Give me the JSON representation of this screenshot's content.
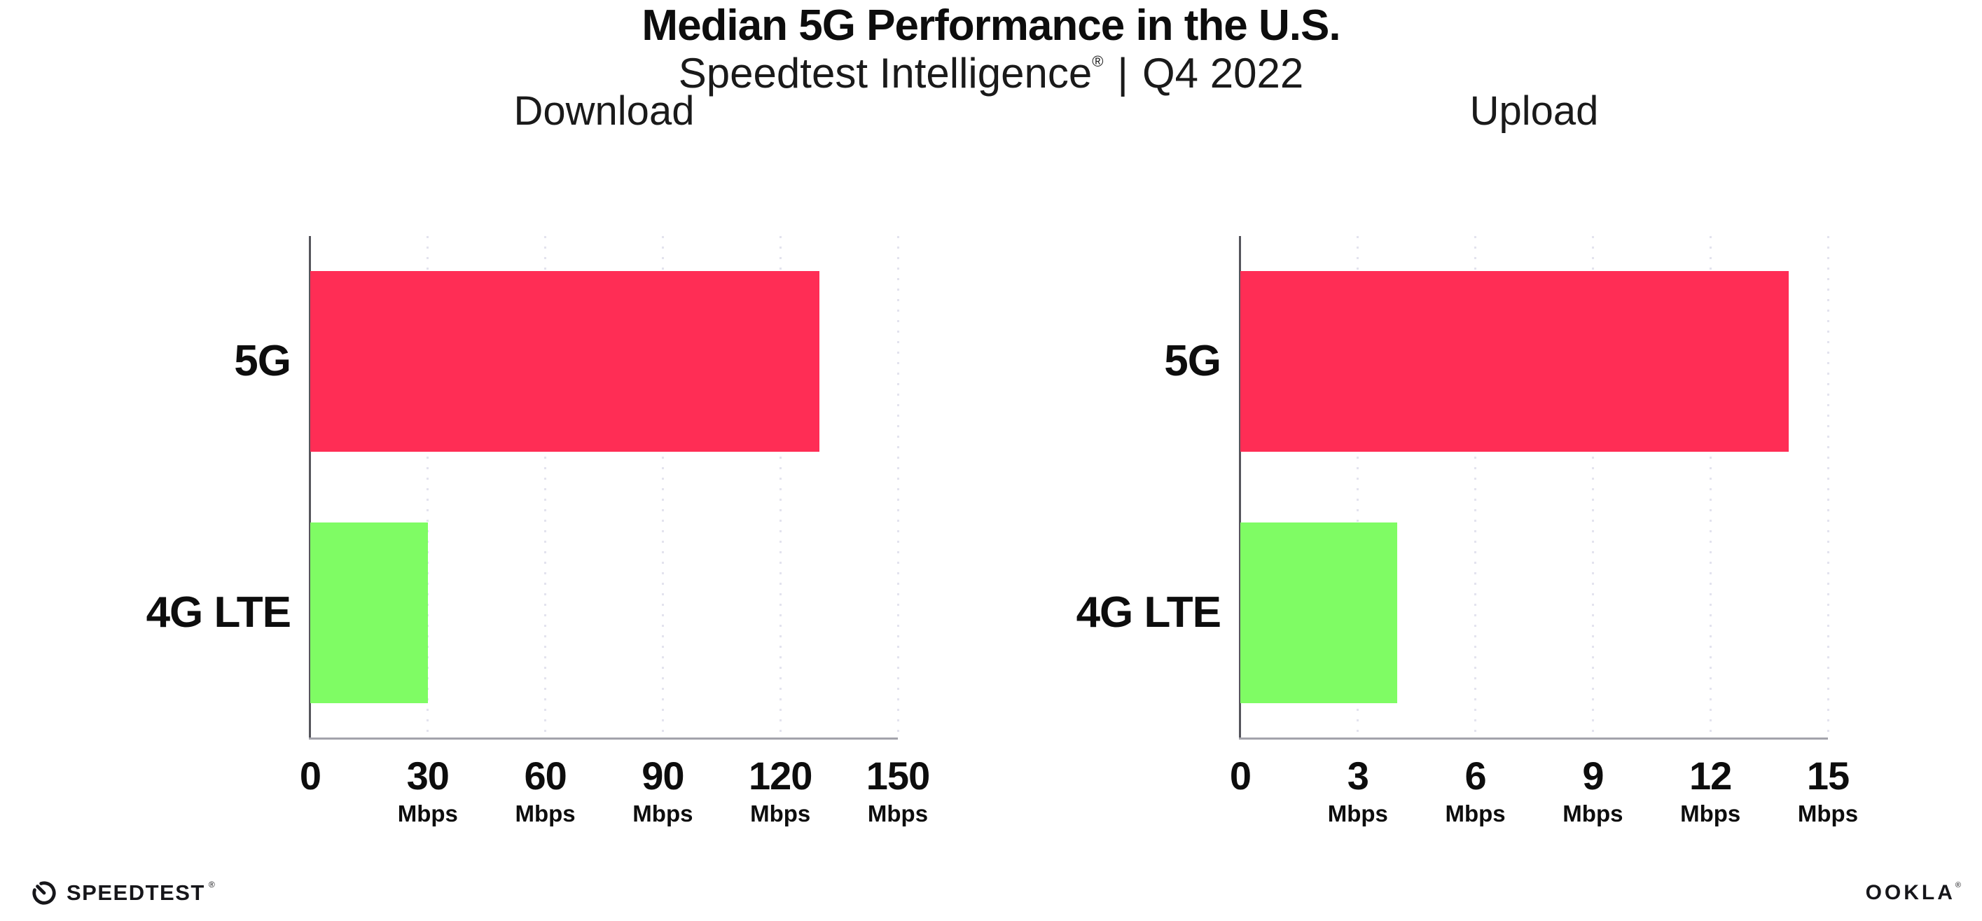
{
  "title": "Median 5G Performance in the U.S.",
  "subtitle": {
    "brand": "Speedtest Intelligence",
    "trademark": "®",
    "divider": "|",
    "period": "Q4 2022"
  },
  "colors": {
    "bar_5g": "#ff2d55",
    "bar_4g_lte": "#7ffc64",
    "gridline": "#e3e3ee",
    "x_axis": "#a3a3ab",
    "y_axis": "#55555c",
    "text": "#0d0d0d",
    "background": "#ffffff"
  },
  "chart_data": [
    {
      "type": "bar",
      "orientation": "horizontal",
      "title": "Download",
      "categories": [
        "5G",
        "4G LTE"
      ],
      "values": [
        130,
        30
      ],
      "unit": "Mbps",
      "xlabel": "",
      "ylabel": "",
      "xlim": [
        0,
        150
      ],
      "xticks": [
        0,
        30,
        60,
        90,
        120,
        150
      ],
      "grid": "vertical-dotted",
      "legend": "none",
      "bar_colors": {
        "5G": "#ff2d55",
        "4G LTE": "#7ffc64"
      }
    },
    {
      "type": "bar",
      "orientation": "horizontal",
      "title": "Upload",
      "categories": [
        "5G",
        "4G LTE"
      ],
      "values": [
        14,
        4
      ],
      "unit": "Mbps",
      "xlabel": "",
      "ylabel": "",
      "xlim": [
        0,
        15
      ],
      "xticks": [
        0,
        3,
        6,
        9,
        12,
        15
      ],
      "grid": "vertical-dotted",
      "legend": "none",
      "bar_colors": {
        "5G": "#ff2d55",
        "4G LTE": "#7ffc64"
      }
    }
  ],
  "footer": {
    "speedtest": {
      "label": "SPEEDTEST",
      "trademark": "®"
    },
    "ookla": {
      "label": "OOKLA",
      "trademark": "®"
    }
  }
}
